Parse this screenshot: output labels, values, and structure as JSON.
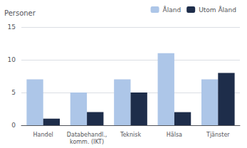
{
  "chart_data": {
    "type": "bar",
    "categories": [
      "Handel",
      "Databehandl.,\nkomm. (IKT)",
      "Teknisk",
      "Hälsa",
      "Tjänster"
    ],
    "ylabel": "Personer",
    "series": [
      {
        "name": "Åland",
        "color": "#adc6e8",
        "values": [
          7,
          5,
          7,
          11,
          7
        ]
      },
      {
        "name": "Utom Åland",
        "color": "#1e2d4a",
        "values": [
          1,
          2,
          5,
          2,
          8
        ]
      }
    ],
    "ylim": [
      0,
      15
    ],
    "yticks": [
      0,
      5,
      10,
      15
    ],
    "grid": true,
    "legend": "upper right"
  }
}
